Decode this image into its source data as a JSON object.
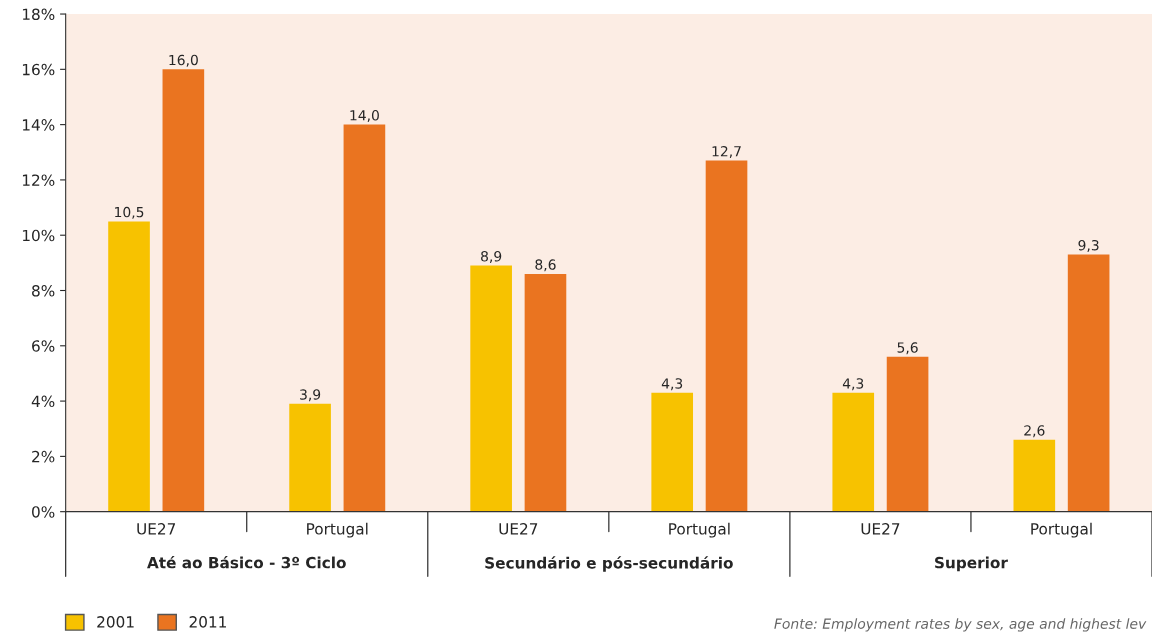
{
  "chart_data": {
    "type": "bar",
    "categories": [
      "UE27",
      "Portugal",
      "UE27",
      "Portugal",
      "UE27",
      "Portugal"
    ],
    "series": [
      {
        "name": "2001",
        "color": "#f7c200",
        "values": [
          10.5,
          3.9,
          8.9,
          4.3,
          4.3,
          2.6
        ],
        "value_labels": [
          "10,5",
          "3,9",
          "8,9",
          "4,3",
          "4,3",
          "2,6"
        ]
      },
      {
        "name": "2011",
        "color": "#ea7420",
        "values": [
          16.0,
          14.0,
          8.6,
          12.7,
          5.6,
          9.3
        ],
        "value_labels": [
          "16,0",
          "14,0",
          "8,6",
          "12,7",
          "5,6",
          "9,3"
        ]
      }
    ],
    "ylim": [
      0,
      18
    ],
    "yticks": [
      {
        "value": 0,
        "label": "0%"
      },
      {
        "value": 2,
        "label": "2%"
      },
      {
        "value": 4,
        "label": "4%"
      },
      {
        "value": 6,
        "label": "6%"
      },
      {
        "value": 8,
        "label": "8%"
      },
      {
        "value": 10,
        "label": "10%"
      },
      {
        "value": 12,
        "label": "12%"
      },
      {
        "value": 14,
        "label": "14%"
      },
      {
        "value": 16,
        "label": "16%"
      },
      {
        "value": 18,
        "label": "18%"
      }
    ],
    "legend": "bottom left",
    "grid": false,
    "annotations": [
      "Até ao Básico - 3º Ciclo",
      "Secundário e pós-secundário",
      "Superior",
      "Fonte: Employment rates by sex, age and highest lev"
    ]
  }
}
